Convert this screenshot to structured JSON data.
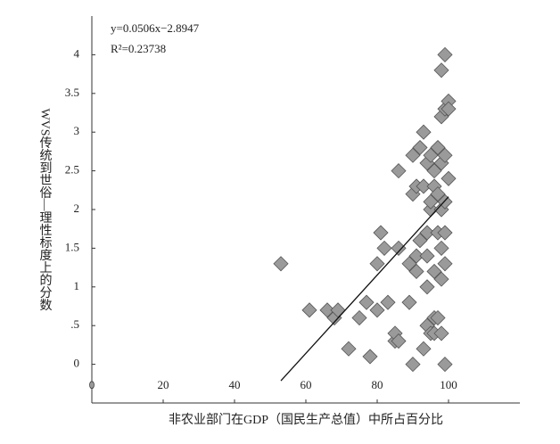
{
  "chart_data": {
    "type": "scatter",
    "x_label": "非农业部门在GDP（国民生产总值）中所占百分比",
    "y_label": "WVS传统到世俗—理性标度上的分数",
    "annotations": [
      "y=0.0506x−2.8947",
      "R²=0.23738"
    ],
    "xlim": [
      0,
      120
    ],
    "xticks": [
      0,
      20,
      40,
      60,
      80,
      100
    ],
    "ylim": [
      -0.5,
      4.5
    ],
    "yticks": [
      0,
      {
        "value": 0.5,
        "label": ".5"
      },
      1,
      1.5,
      2,
      2.5,
      3,
      3.5,
      4
    ],
    "color": "#9a9a9a",
    "trendline": {
      "slope": 0.0506,
      "intercept": -2.8947,
      "x": [
        53,
        100
      ]
    },
    "series": [
      {
        "x": [
          53,
          61,
          66,
          68,
          69,
          72,
          75,
          77,
          78,
          80,
          81,
          80,
          82,
          83,
          85,
          85,
          86,
          86,
          86,
          89,
          89,
          90,
          90,
          90,
          91,
          91,
          91,
          92,
          92,
          93,
          93,
          93,
          94,
          94,
          94,
          94,
          94,
          95,
          95,
          95,
          95,
          96,
          96,
          96,
          96,
          96,
          97,
          97,
          97,
          97,
          98,
          98,
          98,
          98,
          98,
          98,
          98,
          99,
          99,
          99,
          99,
          99,
          99,
          99,
          100,
          100,
          100
        ],
        "values": [
          1.3,
          0.7,
          0.7,
          0.6,
          0.7,
          0.2,
          0.6,
          0.8,
          0.1,
          1.3,
          1.7,
          0.7,
          1.5,
          0.8,
          0.3,
          0.4,
          0.3,
          2.5,
          1.5,
          0.8,
          1.3,
          0,
          2.7,
          2.2,
          2.3,
          1.4,
          1.2,
          2.8,
          1.6,
          2.3,
          3.0,
          0.2,
          1.4,
          1.0,
          1.7,
          2.6,
          0.5,
          2.0,
          2.1,
          2.7,
          0.4,
          2.3,
          2.5,
          1.2,
          0.6,
          0.4,
          2.8,
          1.7,
          0.6,
          2.2,
          3.8,
          3.2,
          2.6,
          1.5,
          1.1,
          0.4,
          2.0,
          3.3,
          4.0,
          2.7,
          1.7,
          1.3,
          0,
          2.1,
          3.4,
          2.4,
          3.3
        ]
      }
    ]
  }
}
